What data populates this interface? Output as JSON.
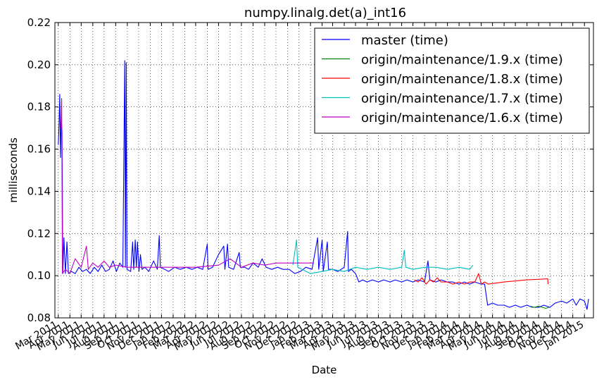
{
  "chart_data": {
    "type": "line",
    "title": "numpy.linalg.det(a)_int16",
    "xlabel": "Date",
    "ylabel": "milliseconds",
    "ylim": [
      0.08,
      0.22
    ],
    "xlim": [
      "2011-02-20",
      "2015-01-25"
    ],
    "yticks": [
      "0.08",
      "0.10",
      "0.12",
      "0.14",
      "0.16",
      "0.18",
      "0.20",
      "0.22"
    ],
    "xticks": [
      {
        "date": "2011-03-01",
        "label": "Mar 2011"
      },
      {
        "date": "2011-04-01",
        "label": "Apr 2011"
      },
      {
        "date": "2011-05-01",
        "label": "May 2011"
      },
      {
        "date": "2011-06-01",
        "label": "Jun 2011"
      },
      {
        "date": "2011-07-01",
        "label": "Jul 2011"
      },
      {
        "date": "2011-08-01",
        "label": "Aug 2011"
      },
      {
        "date": "2011-09-01",
        "label": "Sep 2011"
      },
      {
        "date": "2011-10-01",
        "label": "Oct 2011"
      },
      {
        "date": "2011-11-01",
        "label": "Nov 2011"
      },
      {
        "date": "2011-12-01",
        "label": "Dec 2011"
      },
      {
        "date": "2012-01-01",
        "label": "Jan 2012"
      },
      {
        "date": "2012-02-01",
        "label": "Feb 2012"
      },
      {
        "date": "2012-03-01",
        "label": "Mar 2012"
      },
      {
        "date": "2012-04-01",
        "label": "Apr 2012"
      },
      {
        "date": "2012-05-01",
        "label": "May 2012"
      },
      {
        "date": "2012-06-01",
        "label": "Jun 2012"
      },
      {
        "date": "2012-07-01",
        "label": "Jul 2012"
      },
      {
        "date": "2012-08-01",
        "label": "Aug 2012"
      },
      {
        "date": "2012-09-01",
        "label": "Sep 2012"
      },
      {
        "date": "2012-10-01",
        "label": "Oct 2012"
      },
      {
        "date": "2012-11-01",
        "label": "Nov 2012"
      },
      {
        "date": "2012-12-01",
        "label": "Dec 2012"
      },
      {
        "date": "2013-01-01",
        "label": "Jan 2013"
      },
      {
        "date": "2013-02-01",
        "label": "Feb 2013"
      },
      {
        "date": "2013-03-01",
        "label": "Mar 2013"
      },
      {
        "date": "2013-04-01",
        "label": "Apr 2013"
      },
      {
        "date": "2013-05-01",
        "label": "May 2013"
      },
      {
        "date": "2013-06-01",
        "label": "Jun 2013"
      },
      {
        "date": "2013-07-01",
        "label": "Jul 2013"
      },
      {
        "date": "2013-08-01",
        "label": "Aug 2013"
      },
      {
        "date": "2013-09-01",
        "label": "Sep 2013"
      },
      {
        "date": "2013-10-01",
        "label": "Oct 2013"
      },
      {
        "date": "2013-11-01",
        "label": "Nov 2013"
      },
      {
        "date": "2013-12-01",
        "label": "Dec 2013"
      },
      {
        "date": "2014-01-01",
        "label": "Jan 2014"
      },
      {
        "date": "2014-02-01",
        "label": "Feb 2014"
      },
      {
        "date": "2014-03-01",
        "label": "Mar 2014"
      },
      {
        "date": "2014-04-01",
        "label": "Apr 2014"
      },
      {
        "date": "2014-05-01",
        "label": "May 2014"
      },
      {
        "date": "2014-06-01",
        "label": "Jun 2014"
      },
      {
        "date": "2014-07-01",
        "label": "Jul 2014"
      },
      {
        "date": "2014-08-01",
        "label": "Aug 2014"
      },
      {
        "date": "2014-09-01",
        "label": "Sep 2014"
      },
      {
        "date": "2014-10-01",
        "label": "Oct 2014"
      },
      {
        "date": "2014-11-01",
        "label": "Nov 2014"
      },
      {
        "date": "2014-12-01",
        "label": "Dec 2014"
      },
      {
        "date": "2015-01-01",
        "label": "Jan 2015"
      }
    ],
    "grid": true,
    "legend_position": "top-right",
    "series": [
      {
        "name": "master (time)",
        "color": "#0000ff",
        "points": [
          [
            "2011-03-01",
            0.162
          ],
          [
            "2011-03-03",
            0.172
          ],
          [
            "2011-03-05",
            0.186
          ],
          [
            "2011-03-07",
            0.156
          ],
          [
            "2011-03-09",
            0.175
          ],
          [
            "2011-03-11",
            0.168
          ],
          [
            "2011-03-13",
            0.101
          ],
          [
            "2011-03-16",
            0.118
          ],
          [
            "2011-03-20",
            0.101
          ],
          [
            "2011-03-24",
            0.116
          ],
          [
            "2011-03-28",
            0.101
          ],
          [
            "2011-04-05",
            0.102
          ],
          [
            "2011-04-15",
            0.101
          ],
          [
            "2011-04-25",
            0.104
          ],
          [
            "2011-05-05",
            0.102
          ],
          [
            "2011-05-15",
            0.103
          ],
          [
            "2011-05-25",
            0.101
          ],
          [
            "2011-06-05",
            0.104
          ],
          [
            "2011-06-15",
            0.102
          ],
          [
            "2011-06-25",
            0.105
          ],
          [
            "2011-07-05",
            0.102
          ],
          [
            "2011-07-15",
            0.103
          ],
          [
            "2011-07-25",
            0.107
          ],
          [
            "2011-08-03",
            0.102
          ],
          [
            "2011-08-12",
            0.106
          ],
          [
            "2011-08-20",
            0.104
          ],
          [
            "2011-08-25",
            0.202
          ],
          [
            "2011-08-27",
            0.104
          ],
          [
            "2011-08-29",
            0.201
          ],
          [
            "2011-08-31",
            0.103
          ],
          [
            "2011-09-10",
            0.102
          ],
          [
            "2011-09-15",
            0.116
          ],
          [
            "2011-09-18",
            0.103
          ],
          [
            "2011-09-22",
            0.117
          ],
          [
            "2011-09-25",
            0.104
          ],
          [
            "2011-09-28",
            0.116
          ],
          [
            "2011-10-02",
            0.102
          ],
          [
            "2011-10-06",
            0.11
          ],
          [
            "2011-10-10",
            0.103
          ],
          [
            "2011-10-18",
            0.104
          ],
          [
            "2011-10-28",
            0.102
          ],
          [
            "2011-11-10",
            0.107
          ],
          [
            "2011-11-20",
            0.103
          ],
          [
            "2011-11-25",
            0.119
          ],
          [
            "2011-11-28",
            0.104
          ],
          [
            "2011-12-10",
            0.103
          ],
          [
            "2011-12-20",
            0.102
          ],
          [
            "2012-01-05",
            0.104
          ],
          [
            "2012-01-20",
            0.103
          ],
          [
            "2012-02-05",
            0.104
          ],
          [
            "2012-02-20",
            0.103
          ],
          [
            "2012-03-05",
            0.104
          ],
          [
            "2012-03-20",
            0.103
          ],
          [
            "2012-04-01",
            0.115
          ],
          [
            "2012-04-03",
            0.103
          ],
          [
            "2012-04-15",
            0.104
          ],
          [
            "2012-05-01",
            0.11
          ],
          [
            "2012-05-15",
            0.114
          ],
          [
            "2012-05-18",
            0.103
          ],
          [
            "2012-05-25",
            0.115
          ],
          [
            "2012-05-28",
            0.104
          ],
          [
            "2012-06-10",
            0.103
          ],
          [
            "2012-06-25",
            0.111
          ],
          [
            "2012-06-28",
            0.104
          ],
          [
            "2012-07-10",
            0.104
          ],
          [
            "2012-07-20",
            0.103
          ],
          [
            "2012-08-01",
            0.106
          ],
          [
            "2012-08-15",
            0.104
          ],
          [
            "2012-08-25",
            0.108
          ],
          [
            "2012-09-05",
            0.104
          ],
          [
            "2012-09-20",
            0.103
          ],
          [
            "2012-10-05",
            0.104
          ],
          [
            "2012-10-20",
            0.103
          ],
          [
            "2012-11-05",
            0.103
          ],
          [
            "2012-11-20",
            0.101
          ],
          [
            "2012-12-05",
            0.102
          ],
          [
            "2012-12-20",
            0.104
          ],
          [
            "2013-01-05",
            0.103
          ],
          [
            "2013-01-20",
            0.118
          ],
          [
            "2013-01-23",
            0.103
          ],
          [
            "2013-02-01",
            0.117
          ],
          [
            "2013-02-04",
            0.102
          ],
          [
            "2013-02-15",
            0.116
          ],
          [
            "2013-02-18",
            0.103
          ],
          [
            "2013-03-01",
            0.103
          ],
          [
            "2013-03-15",
            0.102
          ],
          [
            "2013-04-01",
            0.104
          ],
          [
            "2013-04-10",
            0.121
          ],
          [
            "2013-04-12",
            0.102
          ],
          [
            "2013-04-20",
            0.103
          ],
          [
            "2013-05-01",
            0.101
          ],
          [
            "2013-05-10",
            0.097
          ],
          [
            "2013-05-20",
            0.098
          ],
          [
            "2013-06-01",
            0.097
          ],
          [
            "2013-06-15",
            0.098
          ],
          [
            "2013-07-01",
            0.097
          ],
          [
            "2013-07-15",
            0.098
          ],
          [
            "2013-08-01",
            0.097
          ],
          [
            "2013-08-15",
            0.098
          ],
          [
            "2013-09-01",
            0.097
          ],
          [
            "2013-09-15",
            0.098
          ],
          [
            "2013-10-01",
            0.097
          ],
          [
            "2013-10-15",
            0.098
          ],
          [
            "2013-11-01",
            0.097
          ],
          [
            "2013-11-10",
            0.107
          ],
          [
            "2013-11-15",
            0.098
          ],
          [
            "2013-12-01",
            0.097
          ],
          [
            "2013-12-15",
            0.098
          ],
          [
            "2014-01-01",
            0.097
          ],
          [
            "2014-01-15",
            0.097
          ],
          [
            "2014-02-01",
            0.096
          ],
          [
            "2014-02-15",
            0.097
          ],
          [
            "2014-03-01",
            0.096
          ],
          [
            "2014-03-15",
            0.097
          ],
          [
            "2014-04-01",
            0.096
          ],
          [
            "2014-04-10",
            0.096
          ],
          [
            "2014-04-18",
            0.086
          ],
          [
            "2014-05-01",
            0.087
          ],
          [
            "2014-05-15",
            0.086
          ],
          [
            "2014-06-01",
            0.086
          ],
          [
            "2014-06-15",
            0.085
          ],
          [
            "2014-07-01",
            0.086
          ],
          [
            "2014-07-15",
            0.085
          ],
          [
            "2014-08-01",
            0.086
          ],
          [
            "2014-08-15",
            0.085
          ],
          [
            "2014-09-01",
            0.085
          ],
          [
            "2014-09-15",
            0.086
          ],
          [
            "2014-10-01",
            0.085
          ],
          [
            "2014-10-15",
            0.087
          ],
          [
            "2014-11-01",
            0.088
          ],
          [
            "2014-11-15",
            0.087
          ],
          [
            "2014-12-01",
            0.089
          ],
          [
            "2014-12-10",
            0.086
          ],
          [
            "2014-12-20",
            0.089
          ],
          [
            "2015-01-01",
            0.088
          ],
          [
            "2015-01-08",
            0.084
          ],
          [
            "2015-01-12",
            0.089
          ]
        ]
      },
      {
        "name": "origin/maintenance/1.9.x (time)",
        "color": "#008000",
        "points": [
          [
            "2014-08-10",
            0.0855
          ],
          [
            "2014-08-20",
            0.085
          ],
          [
            "2014-09-01",
            0.0855
          ],
          [
            "2014-09-10",
            0.085
          ],
          [
            "2014-09-20",
            0.0845
          ],
          [
            "2014-09-28",
            0.085
          ]
        ]
      },
      {
        "name": "origin/maintenance/1.8.x (time)",
        "color": "#ff0000",
        "points": [
          [
            "2013-10-05",
            0.098
          ],
          [
            "2013-10-15",
            0.097
          ],
          [
            "2013-10-25",
            0.099
          ],
          [
            "2013-11-05",
            0.096
          ],
          [
            "2013-11-15",
            0.098
          ],
          [
            "2013-11-25",
            0.097
          ],
          [
            "2013-12-05",
            0.099
          ],
          [
            "2013-12-15",
            0.097
          ],
          [
            "2014-01-01",
            0.097
          ],
          [
            "2014-01-15",
            0.096
          ],
          [
            "2014-02-01",
            0.097
          ],
          [
            "2014-02-15",
            0.096
          ],
          [
            "2014-03-01",
            0.097
          ],
          [
            "2014-03-15",
            0.097
          ],
          [
            "2014-03-25",
            0.101
          ],
          [
            "2014-04-01",
            0.096
          ],
          [
            "2014-04-10",
            0.097
          ],
          [
            "2014-04-20",
            0.096
          ],
          [
            "2014-06-01",
            0.097
          ],
          [
            "2014-08-01",
            0.098
          ],
          [
            "2014-09-25",
            0.0985
          ],
          [
            "2014-09-26",
            0.096
          ]
        ]
      },
      {
        "name": "origin/maintenance/1.7.x (time)",
        "color": "#00bfbf",
        "points": [
          [
            "2012-11-15",
            0.105
          ],
          [
            "2012-11-25",
            0.117
          ],
          [
            "2012-11-28",
            0.104
          ],
          [
            "2012-12-10",
            0.103
          ],
          [
            "2013-01-01",
            0.101
          ],
          [
            "2013-02-01",
            0.102
          ],
          [
            "2013-03-01",
            0.103
          ],
          [
            "2013-04-01",
            0.102
          ],
          [
            "2013-05-01",
            0.104
          ],
          [
            "2013-06-01",
            0.103
          ],
          [
            "2013-07-01",
            0.104
          ],
          [
            "2013-08-01",
            0.103
          ],
          [
            "2013-09-01",
            0.104
          ],
          [
            "2013-09-08",
            0.112
          ],
          [
            "2013-09-12",
            0.104
          ],
          [
            "2013-10-01",
            0.103
          ],
          [
            "2013-11-01",
            0.104
          ],
          [
            "2013-12-01",
            0.104
          ],
          [
            "2014-01-01",
            0.103
          ],
          [
            "2014-02-01",
            0.104
          ],
          [
            "2014-03-01",
            0.103
          ],
          [
            "2014-03-10",
            0.105
          ]
        ]
      },
      {
        "name": "origin/maintenance/1.6.x (time)",
        "color": "#bf00bf",
        "points": [
          [
            "2011-03-08",
            0.17
          ],
          [
            "2011-03-10",
            0.184
          ],
          [
            "2011-03-12",
            0.101
          ],
          [
            "2011-03-20",
            0.103
          ],
          [
            "2011-04-01",
            0.101
          ],
          [
            "2011-04-15",
            0.108
          ],
          [
            "2011-05-01",
            0.104
          ],
          [
            "2011-05-15",
            0.114
          ],
          [
            "2011-05-20",
            0.103
          ],
          [
            "2011-06-01",
            0.106
          ],
          [
            "2011-06-15",
            0.104
          ],
          [
            "2011-07-01",
            0.107
          ],
          [
            "2011-07-15",
            0.104
          ],
          [
            "2011-08-01",
            0.105
          ],
          [
            "2011-09-01",
            0.104
          ],
          [
            "2011-11-01",
            0.104
          ],
          [
            "2012-01-01",
            0.104
          ],
          [
            "2012-03-01",
            0.104
          ],
          [
            "2012-05-01",
            0.105
          ],
          [
            "2012-06-01",
            0.108
          ],
          [
            "2012-07-01",
            0.104
          ],
          [
            "2012-08-01",
            0.106
          ],
          [
            "2012-09-01",
            0.105
          ],
          [
            "2012-10-01",
            0.106
          ],
          [
            "2013-01-10",
            0.106
          ]
        ]
      }
    ]
  }
}
